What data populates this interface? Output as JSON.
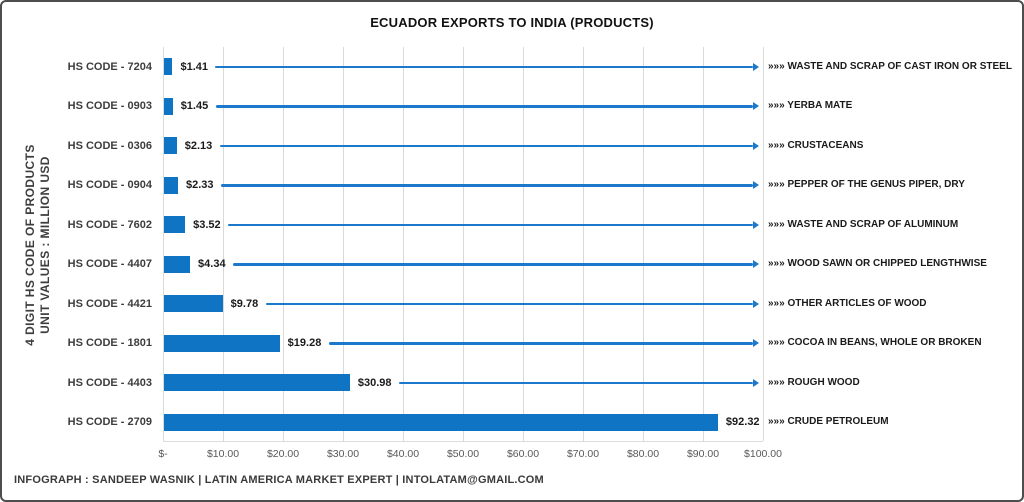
{
  "chart_data": {
    "type": "bar",
    "orientation": "horizontal",
    "title": "ECUADOR EXPORTS TO INDIA (PRODUCTS)",
    "ylabel_lines": [
      "4 DIGIT HS CODE OF PRODUCTS",
      "UNIT VALUES : MILLION USD"
    ],
    "categories": [
      "HS CODE - 7204",
      "HS CODE - 0903",
      "HS CODE - 0306",
      "HS CODE - 0904",
      "HS CODE - 7602",
      "HS CODE - 4407",
      "HS CODE - 4421",
      "HS CODE - 1801",
      "HS CODE - 4403",
      "HS CODE - 2709"
    ],
    "values": [
      1.41,
      1.45,
      2.13,
      2.33,
      3.52,
      4.34,
      9.78,
      19.28,
      30.98,
      92.32
    ],
    "value_labels": [
      "$1.41",
      "$1.45",
      "$2.13",
      "$2.33",
      "$3.52",
      "$4.34",
      "$9.78",
      "$19.28",
      "$30.98",
      "$92.32"
    ],
    "product_label_prefix": "»»»",
    "product_labels": [
      "WASTE AND SCRAP OF CAST IRON OR STEEL",
      "YERBA MATE",
      "CRUSTACEANS",
      "PEPPER OF THE GENUS PIPER, DRY",
      "WASTE AND SCRAP OF ALUMINUM",
      "WOOD SAWN OR CHIPPED LENGTHWISE",
      "OTHER ARTICLES OF WOOD",
      "COCOA IN BEANS, WHOLE OR BROKEN",
      "ROUGH WOOD",
      "CRUDE PETROLEUM"
    ],
    "x_ticks": [
      "$-",
      "$10.00",
      "$20.00",
      "$30.00",
      "$40.00",
      "$50.00",
      "$60.00",
      "$70.00",
      "$80.00",
      "$90.00",
      "$100.00"
    ],
    "xlim": [
      0,
      100
    ],
    "grid": true,
    "legend": "none",
    "colors": {
      "bar": "#0f74c4",
      "leader_line": "#1b78cb",
      "gridline": "#d9d9d9",
      "tick_text": "#595959",
      "category_text": "#3d3d3d",
      "label_text": "#1a1a1a"
    }
  },
  "footer": {
    "credit": "INFOGRAPH : SANDEEP WASNIK | LATIN AMERICA MARKET EXPERT | INTOLATAM@GMAIL.COM"
  }
}
